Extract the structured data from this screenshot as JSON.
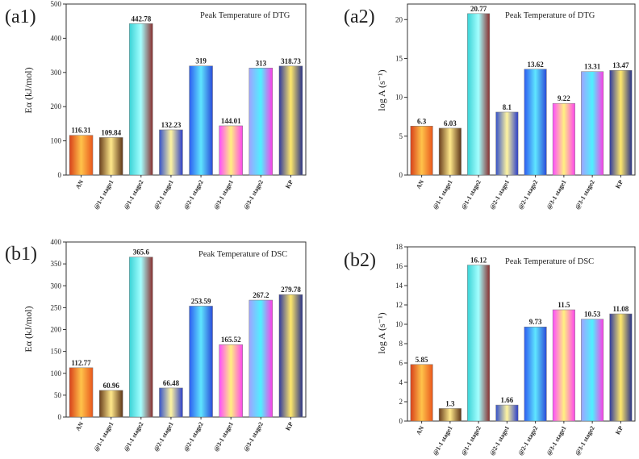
{
  "chart_data": [
    {
      "type": "bar",
      "panel_label": "(a1)",
      "annotation": "Peak Temperature of DTG",
      "ylabel": "Eα (kJ/mol)",
      "ylim": [
        0,
        500
      ],
      "yticks": [
        "0",
        "100",
        "200",
        "300",
        "400",
        "500"
      ],
      "categories": [
        "AN",
        "@1-1 stage1",
        "@1-1 stage2",
        "@2-1 stage1",
        "@2-1 stage2",
        "@3-1 stage1",
        "@3-1 stage2",
        "KP"
      ],
      "values": [
        116.31,
        109.84,
        442.78,
        132.23,
        319,
        144.01,
        313,
        318.73
      ],
      "labels": [
        "116.31",
        "109.84",
        "442.78",
        "132.23",
        "319",
        "144.01",
        "313",
        "318.73"
      ]
    },
    {
      "type": "bar",
      "panel_label": "(a2)",
      "annotation": "Peak Temperature of DTG",
      "ylabel": "log A (s⁻¹)",
      "ylim": [
        0,
        22
      ],
      "yticks": [
        "0",
        "5",
        "10",
        "15",
        "20"
      ],
      "categories": [
        "AN",
        "@1-1 stage1",
        "@1-1 stage2",
        "@2-1 stage1",
        "@2-1 stage2",
        "@3-1 stage1",
        "@3-1 stage2",
        "KP"
      ],
      "values": [
        6.3,
        6.03,
        20.77,
        8.1,
        13.62,
        9.22,
        13.31,
        13.47
      ],
      "labels": [
        "6.3",
        "6.03",
        "20.77",
        "8.1",
        "13.62",
        "9.22",
        "13.31",
        "13.47"
      ]
    },
    {
      "type": "bar",
      "panel_label": "(b1)",
      "annotation": "Peak Temperature of DSC",
      "ylabel": "Eα (kJ/mol)",
      "ylim": [
        0,
        400
      ],
      "yticks": [
        "0",
        "50",
        "100",
        "150",
        "200",
        "250",
        "300",
        "350",
        "400"
      ],
      "categories": [
        "AN",
        "@1-1 stage1",
        "@1-1 stage2",
        "@2-1 stage1",
        "@2-1 stage2",
        "@3-1 stage1",
        "@3-1 stage2",
        "KP"
      ],
      "values": [
        112.77,
        60.96,
        365.6,
        66.48,
        253.59,
        165.52,
        267.2,
        279.78
      ],
      "labels": [
        "112.77",
        "60.96",
        "365.6",
        "66.48",
        "253.59",
        "165.52",
        "267.2",
        "279.78"
      ]
    },
    {
      "type": "bar",
      "panel_label": "(b2)",
      "annotation": "Peak Temperature of DSC",
      "ylabel": "log A (s⁻¹)",
      "ylim": [
        0,
        18
      ],
      "yticks": [
        "0",
        "2",
        "4",
        "6",
        "8",
        "10",
        "12",
        "14",
        "16",
        "18"
      ],
      "categories": [
        "AN",
        "@1-1 stage1",
        "@1-1 stage2",
        "@2-1 stage1",
        "@2-1 stage2",
        "@3-1 stage1",
        "@3-1 stage2",
        "KP"
      ],
      "values": [
        5.85,
        1.3,
        16.12,
        1.66,
        9.73,
        11.5,
        10.53,
        11.08
      ],
      "labels": [
        "5.85",
        "1.3",
        "16.12",
        "1.66",
        "9.73",
        "11.5",
        "10.53",
        "11.08"
      ]
    }
  ],
  "bar_gradients": [
    [
      "#d8401a",
      "#ffc34a",
      "#e8561c"
    ],
    [
      "#6a3f1e",
      "#ffe88a",
      "#5c3418"
    ],
    [
      "#3ad2d6",
      "#a4ffff",
      "#8a2d2d"
    ],
    [
      "#3552c9",
      "#fff5a0",
      "#2b3ec8"
    ],
    [
      "#2d5cf0",
      "#5fe6ff",
      "#2a4ad8"
    ],
    [
      "#ff4cff",
      "#fff080",
      "#ff44ee"
    ],
    [
      "#9fa3ff",
      "#4ff0ff",
      "#ff3ce6"
    ],
    [
      "#2f3a9e",
      "#ffe86a",
      "#273088"
    ]
  ]
}
